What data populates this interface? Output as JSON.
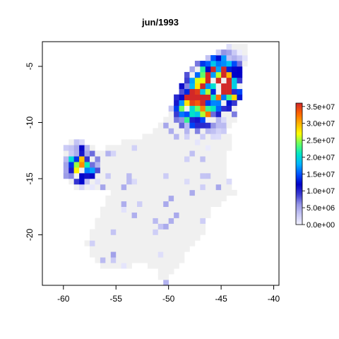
{
  "chart_data": {
    "type": "heatmap",
    "title": "jun/1993",
    "xlabel": "",
    "ylabel": "",
    "xlim": [
      -62,
      -39.5
    ],
    "ylim": [
      -24.5,
      -2.8
    ],
    "x_ticks": [
      -60,
      -55,
      -50,
      -45,
      -40
    ],
    "y_ticks": [
      -5,
      -10,
      -15,
      -20
    ],
    "x_tick_labels": [
      "-60",
      "-55",
      "-50",
      "-45",
      "-40"
    ],
    "y_tick_labels": [
      "-5",
      "-10",
      "-15",
      "-20"
    ],
    "grid": false,
    "colorbar": {
      "min": 0,
      "max": 36000000,
      "ticks": [
        0,
        5000000,
        10000000,
        15000000,
        20000000,
        25000000,
        30000000,
        35000000
      ],
      "labels": [
        "0.0e+00",
        "5.0e+06",
        "1.0e+07",
        "1.5e+07",
        "2.0e+07",
        "2.5e+07",
        "3.0e+07",
        "3.5e+07"
      ],
      "colors": [
        "#f2f2ff",
        "#c8c8f5",
        "#9696e6",
        "#3c3cd2",
        "#0000c8",
        "#0050ff",
        "#00b4ff",
        "#00e6c8",
        "#64ff64",
        "#ffff00",
        "#ffb400",
        "#ff6400",
        "#d22828"
      ]
    },
    "cell_size_deg": 0.5,
    "no_data_value_color": "#f0f0f0",
    "hotspots": [
      {
        "lon": -47.0,
        "lat": -6.5,
        "value": 26000000
      },
      {
        "lon": -45.0,
        "lat": -6.5,
        "value": 18000000
      },
      {
        "lon": -48.0,
        "lat": -9.0,
        "value": 12000000
      },
      {
        "lon": -46.5,
        "lat": -8.0,
        "value": 16000000
      },
      {
        "lon": -44.5,
        "lat": -6.0,
        "value": 22000000
      },
      {
        "lon": -47.5,
        "lat": -8.5,
        "value": 30000000
      },
      {
        "lon": -58.5,
        "lat": -14.0,
        "value": 17000000
      },
      {
        "lon": -58.0,
        "lat": -13.5,
        "value": 13000000
      },
      {
        "lon": -45.5,
        "lat": -5.0,
        "value": 12000000
      },
      {
        "lon": -43.5,
        "lat": -8.0,
        "value": 11000000
      }
    ]
  }
}
